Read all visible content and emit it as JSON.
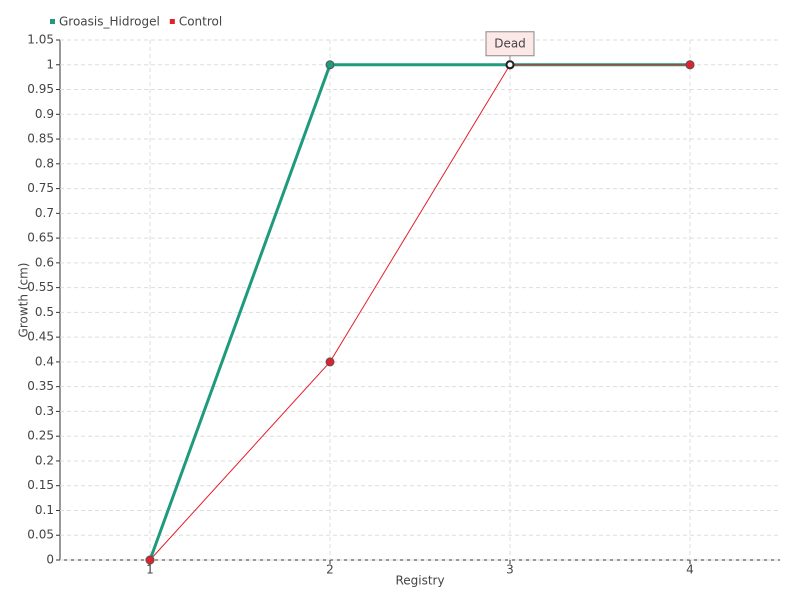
{
  "chart_data": {
    "type": "line",
    "x": [
      1,
      2,
      3,
      4
    ],
    "series": [
      {
        "name": "Groasis_Hidrogel",
        "color": "#1f9a7c",
        "values": [
          0,
          1,
          1,
          1
        ]
      },
      {
        "name": "Control",
        "color": "#e3202c",
        "values": [
          0,
          0.4,
          1,
          1
        ]
      }
    ],
    "xlabel": "Registry",
    "ylabel": "Growth (cm)",
    "xlim": [
      0.5,
      4.5
    ],
    "xticks": [
      1,
      2,
      3,
      4
    ],
    "ylim": [
      0,
      1.05
    ],
    "yticks": [
      0,
      0.05,
      0.1,
      0.15,
      0.2,
      0.25,
      0.3,
      0.35,
      0.4,
      0.45,
      0.5,
      0.55,
      0.6,
      0.65,
      0.7,
      0.75,
      0.8,
      0.85,
      0.9,
      0.95,
      1,
      1.05
    ],
    "grid": true,
    "legend": "top-left",
    "annotations": [
      {
        "text": "Dead",
        "x": 3,
        "y": 1
      }
    ]
  }
}
